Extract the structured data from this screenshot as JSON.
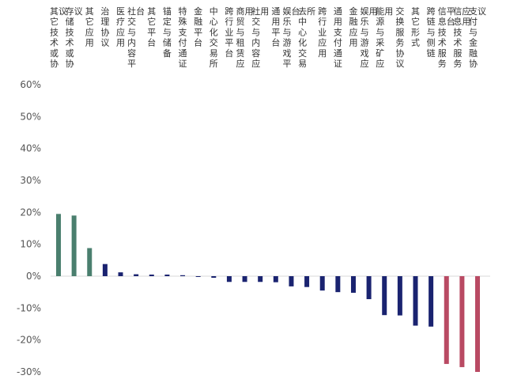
{
  "chart_data": {
    "type": "bar",
    "title": "",
    "xlabel": "",
    "ylabel": "",
    "ylim": [
      -30,
      60
    ],
    "y_ticks": [
      "60%",
      "50%",
      "40%",
      "30%",
      "20%",
      "10%",
      "0%",
      "-10%",
      "-20%",
      "-30%"
    ],
    "x_axis_position": "top",
    "grid": false,
    "legend": "none",
    "categories": [
      "其它技术或协议",
      "存储技术或协议",
      "其它应用",
      "治理协议",
      "医疗应用",
      "社交与内容平台",
      "其它平台",
      "锚定与储备",
      "特殊支付通证",
      "金融平台",
      "中心化交易所",
      "跨行业平台",
      "商贸与租赁应用",
      "社交与内容应用",
      "通用平台",
      "娱乐与游戏平台",
      "去中心化交易所",
      "跨行业应用",
      "通用支付通证",
      "金融应用",
      "娱乐与游戏应用",
      "能源与采矿应用",
      "交换服务协议",
      "其它形式",
      "跨链与侧链",
      "信息技术服务平台",
      "信息技术服务应用",
      "支付与金融协议"
    ],
    "values": [
      19.5,
      19.0,
      8.8,
      3.8,
      1.2,
      0.6,
      0.5,
      0.5,
      0.3,
      -0.2,
      -0.5,
      -1.8,
      -1.8,
      -1.8,
      -1.9,
      -3.2,
      -3.4,
      -4.5,
      -5.0,
      -5.2,
      -7.2,
      -12.2,
      -12.3,
      -15.5,
      -15.8,
      -27.5,
      -28.5,
      -30.0
    ],
    "bar_colors": {
      "top_positive": "#4a7f6e",
      "middle": "#1a2370",
      "bottom_negative": "#b94a63"
    }
  }
}
